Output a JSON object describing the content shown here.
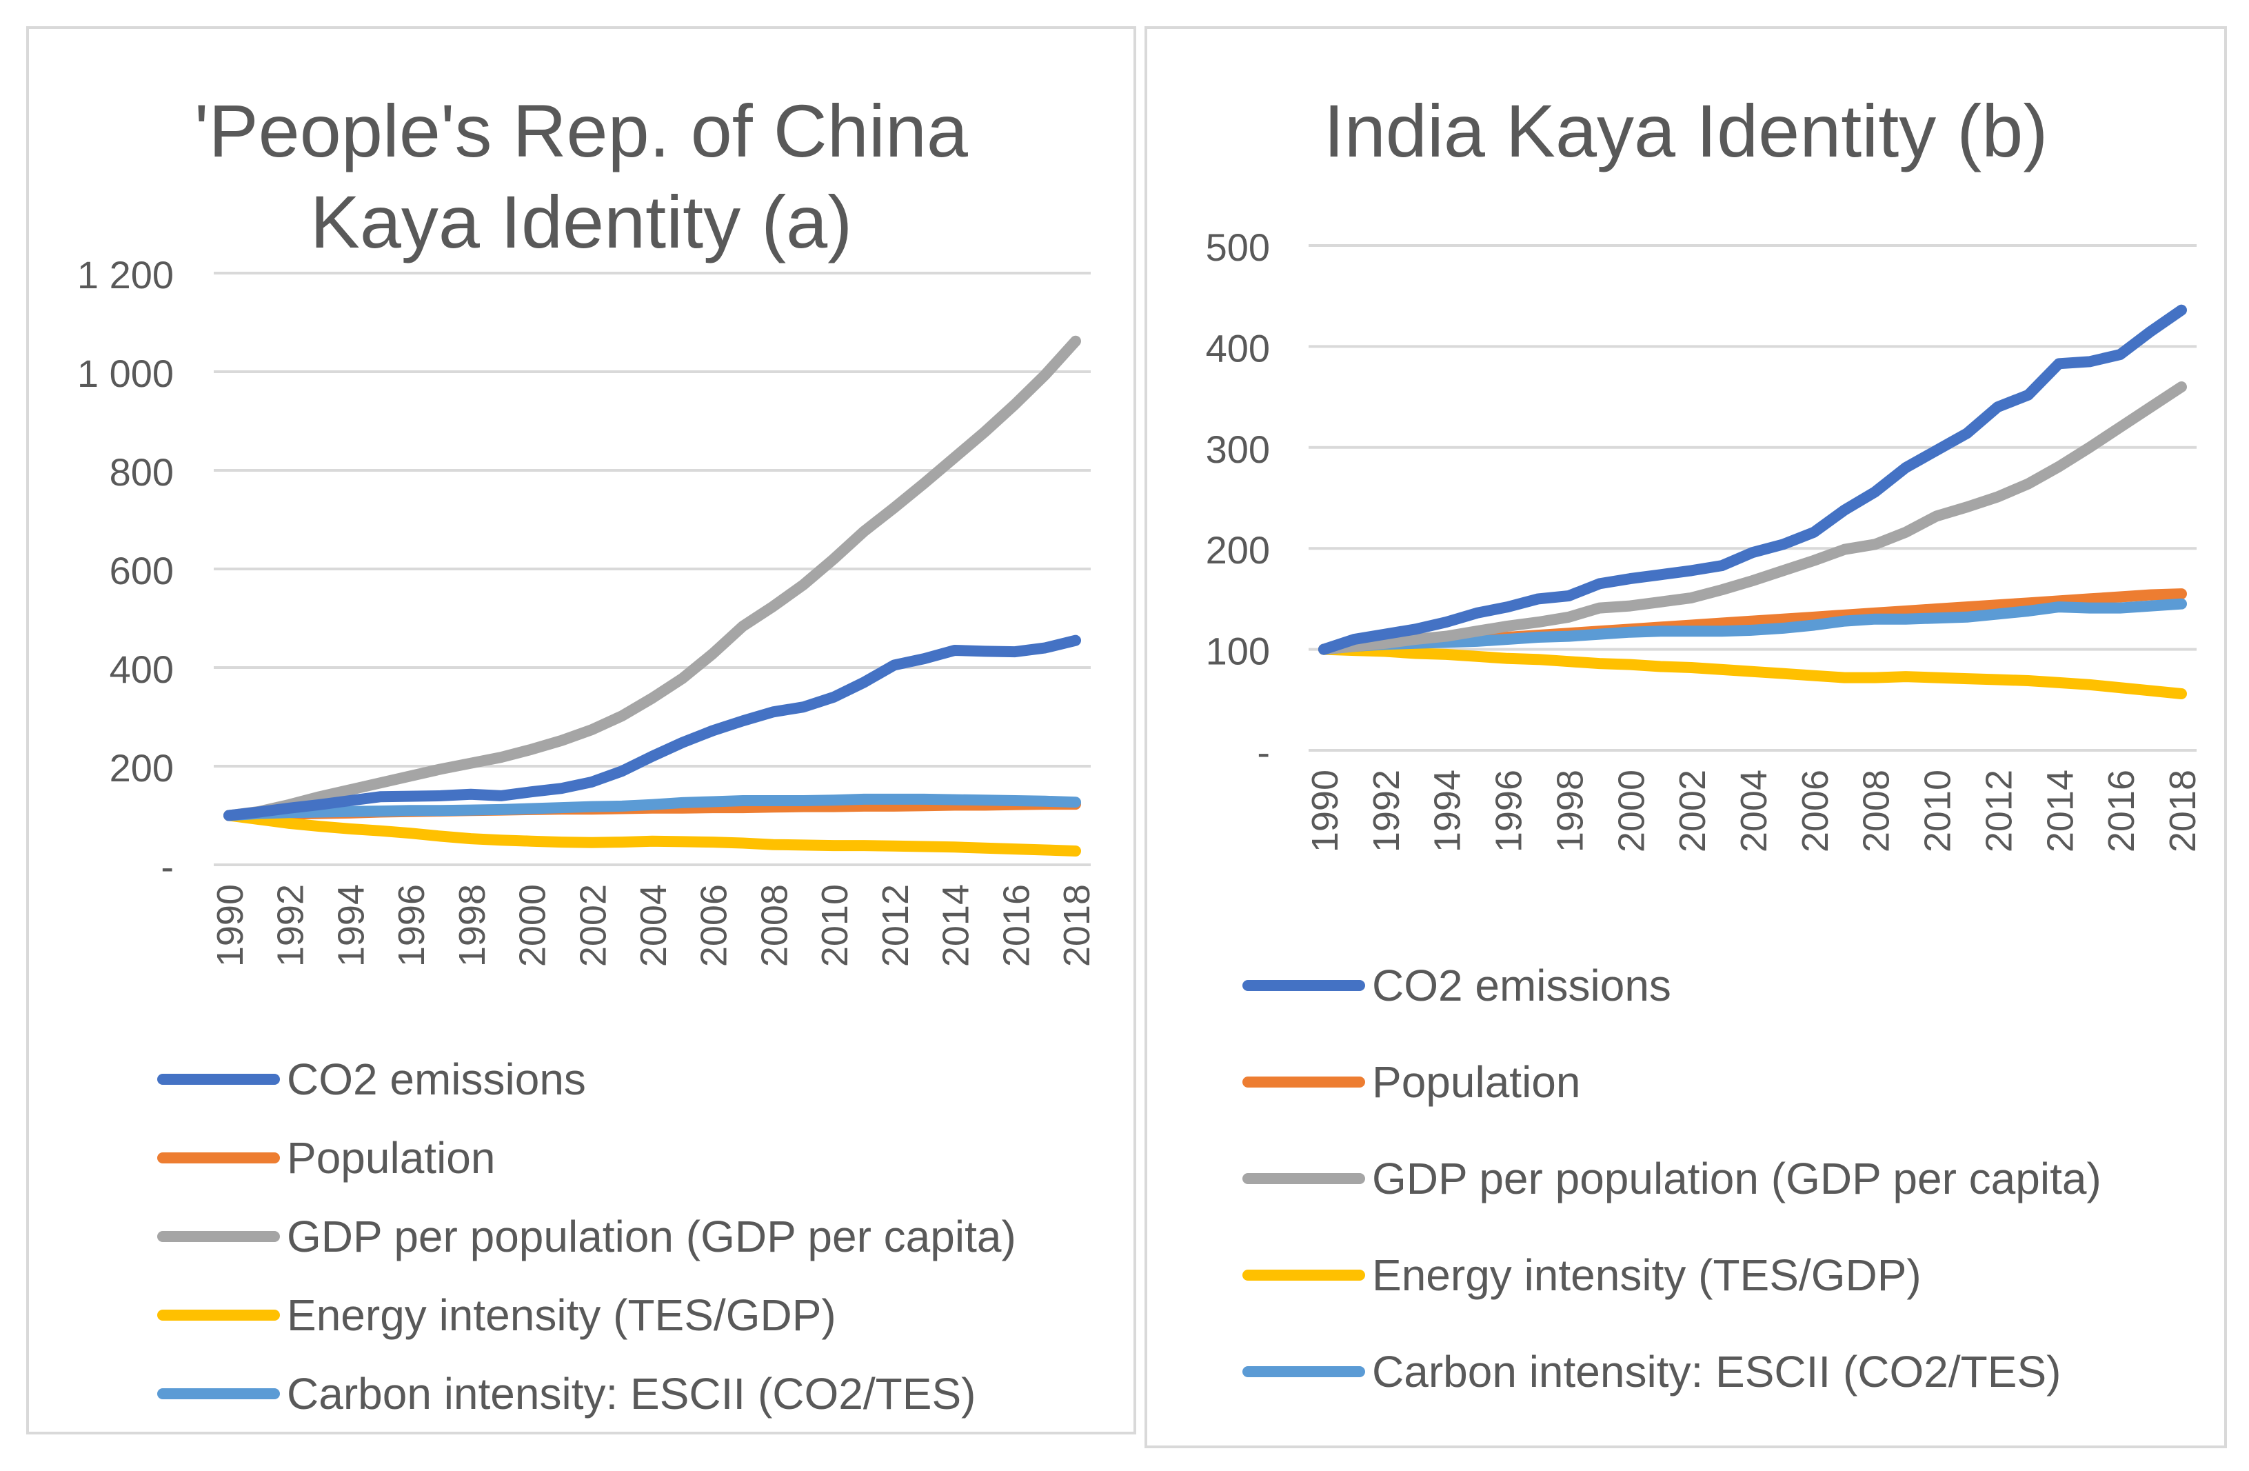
{
  "chart_data": [
    {
      "type": "line",
      "title_lines": [
        "'People's Rep. of China",
        "Kaya Identity (a)"
      ],
      "x": [
        1990,
        1991,
        1992,
        1993,
        1994,
        1995,
        1996,
        1997,
        1998,
        1999,
        2000,
        2001,
        2002,
        2003,
        2004,
        2005,
        2006,
        2007,
        2008,
        2009,
        2010,
        2011,
        2012,
        2013,
        2014,
        2015,
        2016,
        2017,
        2018
      ],
      "x_tick_labels": [
        "1990",
        "1992",
        "1994",
        "1996",
        "1998",
        "2000",
        "2002",
        "2004",
        "2006",
        "2008",
        "2010",
        "2012",
        "2014",
        "2016",
        "2018"
      ],
      "ylim": [
        0,
        1200
      ],
      "y_ticks": [
        {
          "value": 0,
          "label": "-"
        },
        {
          "value": 200,
          "label": "200"
        },
        {
          "value": 400,
          "label": "400"
        },
        {
          "value": 600,
          "label": "600"
        },
        {
          "value": 800,
          "label": "800"
        },
        {
          "value": 1000,
          "label": "1 000"
        },
        {
          "value": 1200,
          "label": "1 200"
        }
      ],
      "grid": true,
      "legend_position": "bottom",
      "series": [
        {
          "name": "CO2 emissions",
          "color": "#4472c4",
          "values": [
            100,
            107,
            115,
            122,
            130,
            138,
            139,
            140,
            143,
            140,
            148,
            155,
            168,
            190,
            220,
            248,
            272,
            292,
            310,
            320,
            340,
            370,
            405,
            418,
            435,
            433,
            432,
            440,
            455
          ]
        },
        {
          "name": "Population",
          "color": "#ed7d31",
          "values": [
            100,
            101,
            103,
            104,
            105,
            107,
            108,
            109,
            110,
            111,
            112,
            113,
            113,
            114,
            115,
            115,
            116,
            116,
            117,
            118,
            118,
            119,
            119,
            120,
            121,
            121,
            122,
            123,
            123
          ]
        },
        {
          "name": "GDP per population (GDP per capita)",
          "color": "#a5a5a5",
          "values": [
            100,
            108,
            122,
            138,
            152,
            166,
            180,
            194,
            206,
            218,
            234,
            252,
            274,
            302,
            338,
            378,
            428,
            484,
            524,
            568,
            620,
            676,
            724,
            774,
            826,
            878,
            934,
            994,
            1062
          ]
        },
        {
          "name": "Energy intensity (TES/GDP)",
          "color": "#ffc000",
          "values": [
            100,
            92,
            84,
            78,
            73,
            69,
            64,
            58,
            53,
            50,
            48,
            46,
            45,
            46,
            48,
            47,
            46,
            44,
            41,
            40,
            39,
            39,
            38,
            37,
            36,
            34,
            32,
            30,
            28
          ]
        },
        {
          "name": "Carbon intensity: ESCII (CO2/TES)",
          "color": "#5b9bd5",
          "values": [
            100,
            104,
            106,
            107,
            108,
            109,
            110,
            110,
            111,
            112,
            114,
            116,
            118,
            119,
            122,
            126,
            128,
            130,
            130,
            130,
            131,
            133,
            133,
            133,
            132,
            131,
            130,
            129,
            127
          ]
        }
      ]
    },
    {
      "type": "line",
      "title_lines": [
        "India Kaya Identity (b)"
      ],
      "x": [
        1990,
        1991,
        1992,
        1993,
        1994,
        1995,
        1996,
        1997,
        1998,
        1999,
        2000,
        2001,
        2002,
        2003,
        2004,
        2005,
        2006,
        2007,
        2008,
        2009,
        2010,
        2011,
        2012,
        2013,
        2014,
        2015,
        2016,
        2017,
        2018
      ],
      "x_tick_labels": [
        "1990",
        "1992",
        "1994",
        "1996",
        "1998",
        "2000",
        "2002",
        "2004",
        "2006",
        "2008",
        "2010",
        "2012",
        "2014",
        "2016",
        "2018"
      ],
      "ylim": [
        0,
        500
      ],
      "y_ticks": [
        {
          "value": 0,
          "label": "-"
        },
        {
          "value": 100,
          "label": "100"
        },
        {
          "value": 200,
          "label": "200"
        },
        {
          "value": 300,
          "label": "300"
        },
        {
          "value": 400,
          "label": "400"
        },
        {
          "value": 500,
          "label": "500"
        }
      ],
      "grid": true,
      "legend_position": "bottom",
      "series": [
        {
          "name": "CO2 emissions",
          "color": "#4472c4",
          "values": [
            100,
            110,
            115,
            120,
            127,
            136,
            142,
            150,
            153,
            165,
            170,
            174,
            178,
            183,
            196,
            204,
            216,
            238,
            256,
            280,
            297,
            314,
            340,
            352,
            383,
            385,
            392,
            415,
            436
          ]
        },
        {
          "name": "Population",
          "color": "#ed7d31",
          "values": [
            100,
            102,
            104,
            106,
            108,
            110,
            112,
            114,
            116,
            118,
            120,
            122,
            124,
            126,
            128,
            130,
            132,
            134,
            136,
            138,
            140,
            142,
            144,
            146,
            148,
            150,
            152,
            154,
            155
          ]
        },
        {
          "name": "GDP per population (GDP per capita)",
          "color": "#a5a5a5",
          "values": [
            100,
            103,
            106,
            110,
            113,
            118,
            123,
            127,
            132,
            141,
            143,
            147,
            151,
            159,
            168,
            178,
            188,
            199,
            204,
            216,
            232,
            241,
            251,
            264,
            281,
            300,
            320,
            340,
            360
          ]
        },
        {
          "name": "Energy intensity (TES/GDP)",
          "color": "#ffc000",
          "values": [
            100,
            99,
            98,
            96,
            95,
            93,
            91,
            90,
            88,
            86,
            85,
            83,
            82,
            80,
            78,
            76,
            74,
            72,
            72,
            73,
            72,
            71,
            70,
            69,
            67,
            65,
            62,
            59,
            56
          ]
        },
        {
          "name": "Carbon intensity: ESCII (CO2/TES)",
          "color": "#5b9bd5",
          "values": [
            100,
            103,
            105,
            106,
            107,
            108,
            110,
            112,
            113,
            115,
            117,
            118,
            118,
            118,
            119,
            121,
            124,
            128,
            130,
            130,
            131,
            132,
            135,
            138,
            142,
            141,
            141,
            143,
            145
          ]
        }
      ]
    }
  ]
}
